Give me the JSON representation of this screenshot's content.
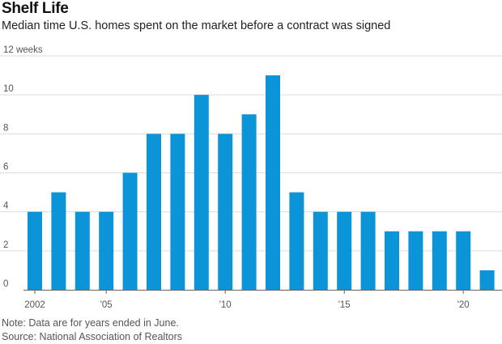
{
  "header": {
    "title": "Shelf Life",
    "subtitle": "Median time U.S. homes spent on the market before a contract was signed"
  },
  "footer": {
    "note": "Note: Data are for years ended in June.",
    "source": "Source: National Association of Realtors"
  },
  "colors": {
    "bar": "#0c94d8",
    "grid": "#dcdcdc",
    "axis": "#666666",
    "text": "#555555"
  },
  "chart_data": {
    "type": "bar",
    "categories": [
      "2002",
      "2003",
      "2004",
      "2005",
      "2006",
      "2007",
      "2008",
      "2009",
      "2010",
      "2011",
      "2012",
      "2013",
      "2014",
      "2015",
      "2016",
      "2017",
      "2018",
      "2019",
      "2020",
      "2021"
    ],
    "values": [
      4,
      5,
      4,
      4,
      6,
      8,
      8,
      10,
      8,
      9,
      11,
      5,
      4,
      4,
      4,
      3,
      3,
      3,
      3,
      1
    ],
    "x_tick_labels": [
      {
        "category": "2002",
        "label": "2002"
      },
      {
        "category": "2005",
        "label": "'05"
      },
      {
        "category": "2010",
        "label": "'10"
      },
      {
        "category": "2015",
        "label": "'15"
      },
      {
        "category": "2020",
        "label": "'20"
      }
    ],
    "y_ticks": [
      0,
      2,
      4,
      6,
      8,
      10,
      12
    ],
    "y_tick_labels": [
      "0",
      "2",
      "4",
      "6",
      "8",
      "10",
      "12 weeks"
    ],
    "ylim": [
      0,
      12
    ],
    "grid": true,
    "title": "Shelf Life",
    "subtitle": "Median time U.S. homes spent on the market before a contract was signed",
    "xlabel": "",
    "ylabel": ""
  }
}
